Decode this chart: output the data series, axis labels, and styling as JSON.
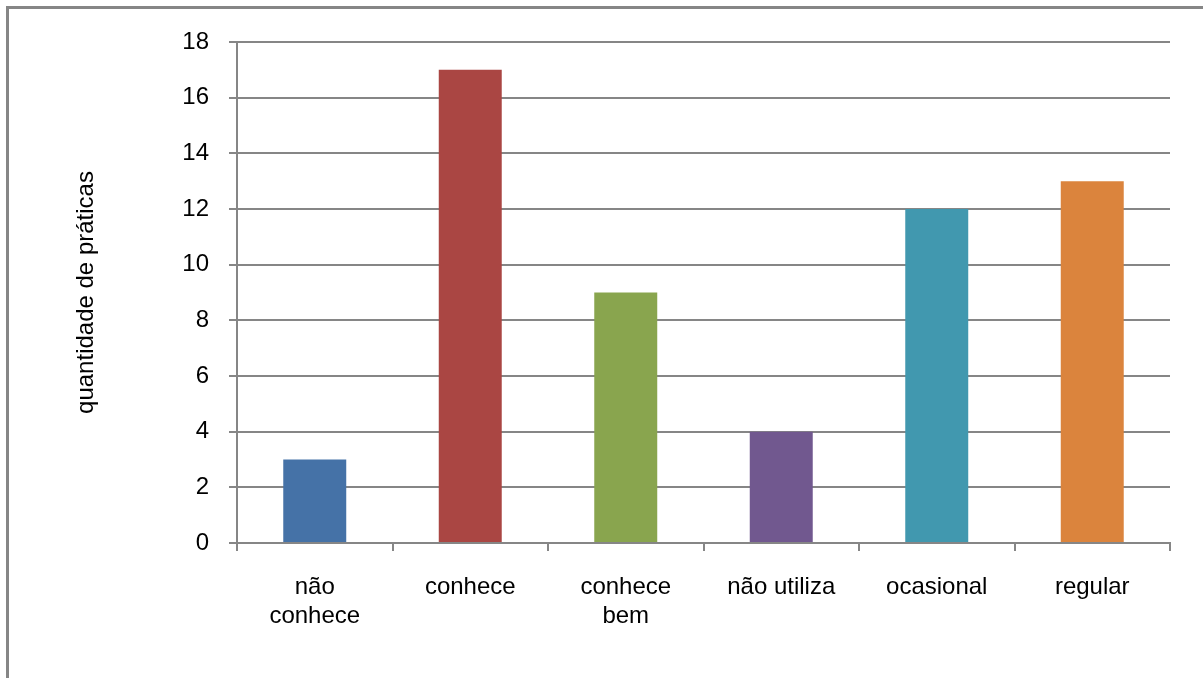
{
  "chart_data": {
    "type": "bar",
    "ylabel": "quantidade de práticas",
    "categories": [
      "não conhece",
      "conhece",
      "conhece bem",
      "não utiliza",
      "ocasional",
      "regular"
    ],
    "values": [
      3,
      17,
      9,
      4,
      12,
      13
    ],
    "colors": [
      "#4572a7",
      "#aa4643",
      "#89a54e",
      "#71588f",
      "#4198af",
      "#db843d"
    ],
    "ylim": [
      0,
      18
    ],
    "yticks": [
      0,
      2,
      4,
      6,
      8,
      10,
      12,
      14,
      16,
      18
    ],
    "grid": "y"
  }
}
